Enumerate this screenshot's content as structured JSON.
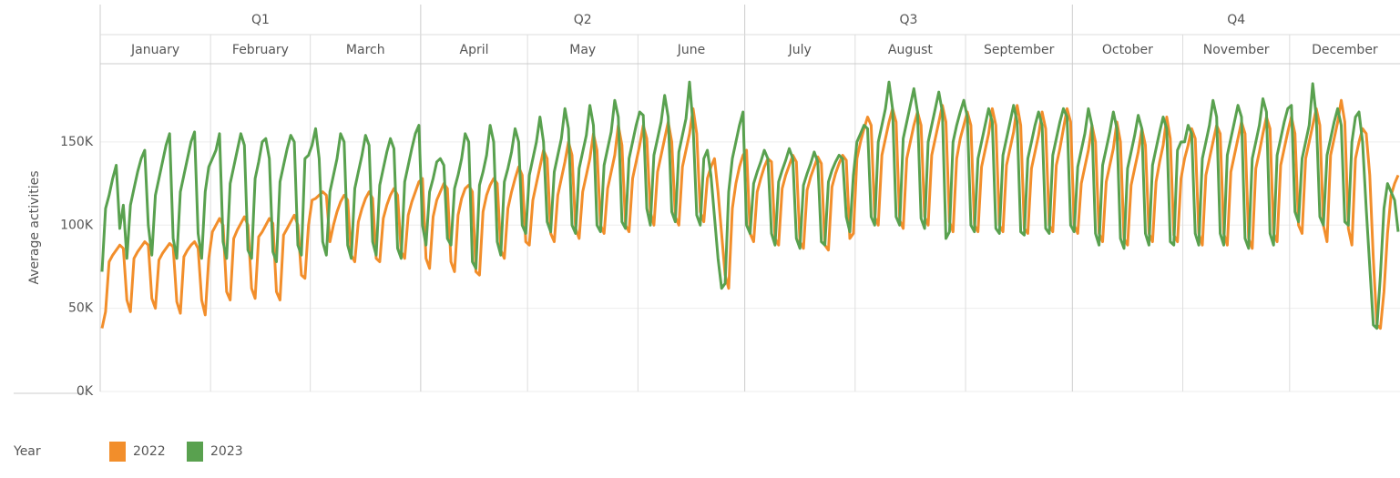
{
  "chart_data": {
    "type": "line",
    "y_label": "Average activities",
    "legend_title": "Year",
    "quarters": [
      "Q1",
      "Q2",
      "Q3",
      "Q4"
    ],
    "months": [
      "January",
      "February",
      "March",
      "April",
      "May",
      "June",
      "July",
      "August",
      "September",
      "October",
      "November",
      "December"
    ],
    "ylim": [
      0,
      197
    ],
    "yticks": [
      {
        "value": 0,
        "label": "0K"
      },
      {
        "value": 50,
        "label": "50K"
      },
      {
        "value": 100,
        "label": "100K"
      },
      {
        "value": 150,
        "label": "150K"
      }
    ],
    "grid": true,
    "series": [
      {
        "name": "2022",
        "color": "#f28e2b",
        "values": [
          [
            38,
            48,
            78,
            82,
            85,
            88,
            86,
            55,
            48,
            80,
            84,
            87,
            90,
            88,
            56,
            50,
            79,
            83,
            86,
            89,
            87,
            54,
            47,
            81,
            85,
            88,
            90,
            86,
            55,
            46,
            80
          ],
          [
            96,
            100,
            104,
            100,
            60,
            55,
            92,
            97,
            101,
            105,
            100,
            62,
            56,
            93,
            96,
            100,
            104,
            101,
            60,
            55,
            94,
            98,
            102,
            106,
            100,
            70,
            68,
            100
          ],
          [
            115,
            116,
            118,
            120,
            118,
            90,
            100,
            108,
            114,
            118,
            115,
            82,
            78,
            102,
            110,
            116,
            120,
            116,
            80,
            78,
            104,
            112,
            118,
            122,
            118,
            84,
            80,
            106,
            114,
            120,
            126
          ],
          [
            128,
            80,
            74,
            105,
            115,
            120,
            125,
            122,
            78,
            72,
            106,
            116,
            122,
            124,
            120,
            72,
            70,
            108,
            118,
            124,
            128,
            125,
            85,
            80,
            110,
            120,
            128,
            135,
            130,
            90
          ],
          [
            88,
            115,
            125,
            135,
            145,
            140,
            95,
            90,
            118,
            128,
            138,
            150,
            142,
            98,
            92,
            120,
            130,
            140,
            155,
            145,
            100,
            95,
            122,
            132,
            142,
            160,
            148,
            100,
            96,
            128,
            138
          ],
          [
            148,
            160,
            152,
            108,
            100,
            132,
            142,
            152,
            162,
            150,
            105,
            100,
            135,
            145,
            155,
            170,
            155,
            108,
            102,
            128,
            135,
            140,
            120,
            95,
            70,
            62,
            110,
            125,
            135,
            142
          ],
          [
            145,
            95,
            90,
            120,
            128,
            135,
            140,
            138,
            92,
            88,
            122,
            130,
            136,
            142,
            138,
            90,
            86,
            121,
            129,
            135,
            141,
            137,
            88,
            85,
            123,
            131,
            137,
            142,
            139,
            92,
            95
          ],
          [
            140,
            150,
            158,
            165,
            160,
            105,
            100,
            142,
            152,
            162,
            170,
            162,
            103,
            98,
            140,
            150,
            160,
            168,
            160,
            105,
            100,
            142,
            152,
            162,
            172,
            162,
            102,
            96,
            140,
            152,
            160
          ],
          [
            168,
            160,
            100,
            96,
            135,
            145,
            155,
            170,
            160,
            100,
            96,
            136,
            146,
            156,
            172,
            160,
            98,
            95,
            134,
            144,
            154,
            168,
            158,
            100,
            96,
            136,
            146,
            158,
            170,
            162
          ],
          [
            100,
            95,
            125,
            135,
            145,
            160,
            150,
            95,
            90,
            126,
            136,
            146,
            162,
            150,
            92,
            88,
            124,
            134,
            144,
            158,
            148,
            95,
            90,
            126,
            138,
            148,
            165,
            152,
            94,
            90,
            128
          ],
          [
            140,
            148,
            158,
            152,
            95,
            88,
            130,
            140,
            150,
            160,
            155,
            95,
            88,
            132,
            142,
            152,
            162,
            155,
            92,
            86,
            134,
            144,
            155,
            165,
            158,
            95,
            90,
            136,
            146,
            156
          ],
          [
            165,
            155,
            100,
            95,
            140,
            150,
            160,
            170,
            160,
            100,
            90,
            142,
            152,
            162,
            175,
            162,
            98,
            88,
            140,
            150,
            158,
            155,
            130,
            80,
            40,
            38,
            60,
            95,
            118,
            125,
            130
          ]
        ]
      },
      {
        "name": "2023",
        "color": "#59a14f",
        "values": [
          [
            72,
            110,
            118,
            128,
            136,
            98,
            112,
            80,
            112,
            122,
            132,
            140,
            145,
            100,
            82,
            118,
            128,
            138,
            148,
            155,
            92,
            80,
            120,
            130,
            140,
            150,
            156,
            95,
            80,
            120,
            135
          ],
          [
            140,
            145,
            155,
            90,
            80,
            125,
            135,
            145,
            155,
            148,
            85,
            80,
            128,
            138,
            150,
            152,
            140,
            84,
            78,
            126,
            136,
            146,
            154,
            150,
            88,
            82,
            140,
            142
          ],
          [
            148,
            158,
            140,
            90,
            82,
            120,
            130,
            140,
            155,
            150,
            88,
            80,
            122,
            132,
            142,
            154,
            148,
            90,
            82,
            124,
            134,
            144,
            152,
            146,
            86,
            80,
            126,
            136,
            146,
            155,
            160
          ],
          [
            100,
            88,
            120,
            128,
            138,
            140,
            136,
            92,
            88,
            122,
            130,
            140,
            155,
            150,
            78,
            74,
            124,
            132,
            142,
            160,
            150,
            90,
            82,
            126,
            134,
            144,
            158,
            150,
            100,
            95
          ],
          [
            130,
            140,
            150,
            165,
            150,
            102,
            96,
            132,
            142,
            152,
            170,
            158,
            100,
            95,
            134,
            144,
            154,
            172,
            160,
            100,
            96,
            136,
            146,
            156,
            175,
            165,
            102,
            98,
            140,
            150,
            160
          ],
          [
            168,
            166,
            110,
            100,
            142,
            152,
            162,
            178,
            165,
            108,
            102,
            144,
            154,
            164,
            186,
            160,
            106,
            100,
            140,
            145,
            130,
            105,
            80,
            62,
            65,
            120,
            140,
            150,
            160,
            168
          ],
          [
            100,
            95,
            125,
            132,
            138,
            145,
            140,
            95,
            88,
            126,
            133,
            139,
            146,
            140,
            92,
            86,
            124,
            131,
            137,
            144,
            138,
            90,
            88,
            126,
            133,
            138,
            142,
            140,
            105,
            96,
            130
          ],
          [
            150,
            155,
            160,
            158,
            105,
            100,
            150,
            160,
            170,
            186,
            170,
            105,
            100,
            152,
            162,
            172,
            182,
            168,
            104,
            98,
            150,
            160,
            170,
            180,
            168,
            92,
            96,
            150,
            160,
            168,
            175
          ],
          [
            165,
            100,
            96,
            140,
            150,
            160,
            170,
            162,
            98,
            95,
            142,
            152,
            162,
            172,
            162,
            96,
            94,
            140,
            150,
            160,
            168,
            160,
            98,
            95,
            142,
            152,
            162,
            170,
            165,
            100
          ],
          [
            96,
            135,
            145,
            155,
            170,
            160,
            95,
            88,
            136,
            146,
            156,
            168,
            158,
            92,
            86,
            134,
            144,
            154,
            166,
            158,
            95,
            88,
            136,
            146,
            156,
            165,
            158,
            90,
            88,
            145,
            150
          ],
          [
            150,
            160,
            155,
            95,
            88,
            140,
            150,
            160,
            175,
            165,
            95,
            88,
            142,
            152,
            162,
            172,
            165,
            92,
            86,
            140,
            150,
            160,
            176,
            168,
            95,
            88,
            142,
            152,
            162,
            170
          ],
          [
            172,
            108,
            102,
            140,
            150,
            160,
            185,
            165,
            105,
            100,
            142,
            152,
            162,
            170,
            160,
            102,
            100,
            150,
            165,
            168,
            150,
            110,
            75,
            40,
            38,
            70,
            110,
            125,
            120,
            115,
            96
          ]
        ]
      }
    ]
  }
}
